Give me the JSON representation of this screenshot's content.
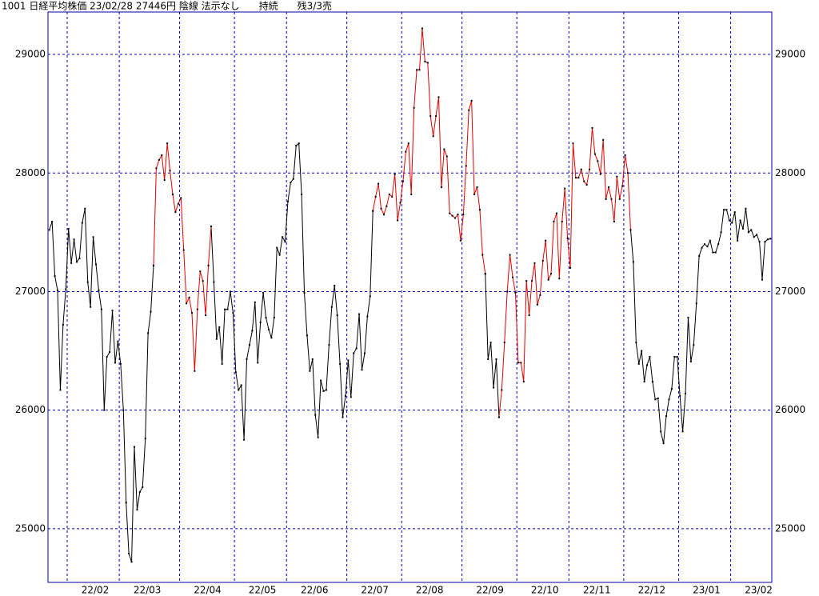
{
  "chart_data": {
    "type": "line",
    "title": "1001 日経平均株価 23/02/28 27446円 陰線 法示なし　　持続　　残3/3売",
    "ylim": [
      24547,
      29358
    ],
    "yticks": [
      25000,
      26000,
      27000,
      28000,
      29000
    ],
    "grid": true,
    "categories": [
      null,
      null,
      null,
      null,
      null,
      null,
      null,
      "22/02",
      null,
      null,
      null,
      null,
      null,
      null,
      null,
      null,
      null,
      null,
      null,
      null,
      null,
      null,
      null,
      null,
      null,
      null,
      "22/03",
      null,
      null,
      null,
      null,
      null,
      null,
      null,
      null,
      null,
      null,
      null,
      null,
      null,
      null,
      null,
      null,
      null,
      null,
      null,
      null,
      null,
      "22/04",
      null,
      null,
      null,
      null,
      null,
      null,
      null,
      null,
      null,
      null,
      null,
      null,
      null,
      null,
      null,
      null,
      null,
      null,
      null,
      "22/05",
      null,
      null,
      null,
      null,
      null,
      null,
      null,
      null,
      null,
      null,
      null,
      null,
      null,
      null,
      null,
      null,
      null,
      null,
      "22/06",
      null,
      null,
      null,
      null,
      null,
      null,
      null,
      null,
      null,
      null,
      null,
      null,
      null,
      null,
      null,
      null,
      null,
      null,
      null,
      null,
      null,
      "22/07",
      null,
      null,
      null,
      null,
      null,
      null,
      null,
      null,
      null,
      null,
      null,
      null,
      null,
      null,
      null,
      null,
      null,
      null,
      null,
      "22/08",
      null,
      null,
      null,
      null,
      null,
      null,
      null,
      null,
      null,
      null,
      null,
      null,
      null,
      null,
      null,
      null,
      null,
      null,
      null,
      null,
      null,
      "22/09",
      null,
      null,
      null,
      null,
      null,
      null,
      null,
      null,
      null,
      null,
      null,
      null,
      null,
      null,
      null,
      null,
      null,
      null,
      null,
      "22/10",
      null,
      null,
      null,
      null,
      null,
      null,
      null,
      null,
      null,
      null,
      null,
      null,
      null,
      null,
      null,
      null,
      null,
      null,
      "22/11",
      null,
      null,
      null,
      null,
      null,
      null,
      null,
      null,
      null,
      null,
      null,
      null,
      null,
      null,
      null,
      null,
      null,
      null,
      null,
      "22/12",
      null,
      null,
      null,
      null,
      null,
      null,
      null,
      null,
      null,
      null,
      null,
      null,
      null,
      null,
      null,
      null,
      null,
      null,
      null,
      "23/01",
      null,
      null,
      null,
      null,
      null,
      null,
      null,
      null,
      null,
      null,
      null,
      null,
      null,
      null,
      null,
      null,
      null,
      null,
      "23/02",
      null,
      null,
      null,
      null,
      null,
      null,
      null,
      null,
      null,
      null,
      null,
      null,
      null,
      null
    ],
    "series": [
      {
        "color": "#000000",
        "values": [
          27520,
          27590,
          27130,
          27010,
          26170,
          26720,
          27020,
          27530,
          27240,
          27440,
          27250,
          27280,
          27580,
          27700,
          27080,
          26870,
          27460,
          27230,
          27010,
          26850,
          26000,
          26450,
          26490,
          26840,
          26400,
          26580,
          26390,
          26000,
          25220,
          24790,
          24720,
          25690,
          25160,
          25310,
          25350,
          25760,
          26650,
          26830,
          27220,
          null,
          null,
          null,
          null,
          null,
          null,
          null,
          null,
          null,
          null,
          null,
          null,
          null,
          null,
          null,
          null,
          null,
          null,
          null,
          null,
          27550,
          27080,
          26600,
          26700,
          26390,
          26850,
          26850,
          27000,
          26820,
          26320,
          26170,
          26210,
          25750,
          26430,
          26550,
          26670,
          26910,
          26400,
          26740,
          26990,
          26780,
          26680,
          26610,
          26780,
          27370,
          27310,
          27460,
          27420,
          27760,
          27920,
          27950,
          28230,
          28250,
          27820,
          26990,
          26630,
          26330,
          26430,
          25960,
          25770,
          26250,
          26160,
          26170,
          26550,
          26870,
          27050,
          26800,
          26390,
          25940,
          26120,
          26420,
          26110,
          26480,
          26520,
          26810,
          26340,
          26480,
          26790,
          26960,
          27680,
          null,
          null,
          null,
          null,
          null,
          null,
          null,
          null,
          null,
          null,
          null,
          null,
          null,
          null,
          null,
          null,
          null,
          null,
          null,
          null,
          null,
          null,
          null,
          null,
          null,
          null,
          null,
          null,
          null,
          null,
          null,
          null,
          null,
          null,
          null,
          null,
          null,
          null,
          null,
          null,
          27150,
          26430,
          26570,
          26190,
          26430,
          25940,
          null,
          null,
          null,
          null,
          null,
          null,
          null,
          null,
          null,
          null,
          null,
          null,
          null,
          null,
          null,
          null,
          null,
          null,
          null,
          null,
          null,
          null,
          null,
          null,
          null,
          null,
          null,
          null,
          null,
          null,
          null,
          null,
          null,
          null,
          null,
          null,
          null,
          null,
          null,
          null,
          null,
          null,
          null,
          null,
          null,
          null,
          null,
          27520,
          27250,
          26570,
          26390,
          26500,
          26240,
          26380,
          26450,
          26240,
          26090,
          26100,
          25820,
          25720,
          25950,
          26090,
          26180,
          26450,
          26450,
          26120,
          25820,
          26140,
          26780,
          26410,
          26550,
          26900,
          27300,
          27370,
          27400,
          27380,
          27430,
          27330,
          27330,
          27400,
          27500,
          27690,
          27690,
          27600,
          27580,
          27670,
          27430,
          27600,
          27530,
          27700,
          27500,
          27520,
          27460,
          27480,
          27420,
          27100,
          27420,
          27440,
          27446
        ]
      },
      {
        "color": "#e00000",
        "values": [
          null,
          null,
          null,
          null,
          null,
          null,
          null,
          null,
          null,
          null,
          null,
          null,
          null,
          null,
          null,
          null,
          null,
          null,
          null,
          null,
          null,
          null,
          null,
          null,
          null,
          null,
          null,
          null,
          null,
          null,
          null,
          null,
          null,
          null,
          null,
          null,
          null,
          null,
          27220,
          28040,
          28110,
          28150,
          27940,
          28250,
          28020,
          27820,
          27670,
          27740,
          27790,
          27350,
          26900,
          26950,
          26820,
          26330,
          26850,
          27170,
          27090,
          26800,
          27220,
          27550,
          null,
          null,
          null,
          null,
          null,
          null,
          null,
          null,
          null,
          null,
          null,
          null,
          null,
          null,
          null,
          null,
          null,
          null,
          null,
          null,
          null,
          null,
          null,
          null,
          null,
          null,
          null,
          null,
          null,
          null,
          null,
          null,
          null,
          null,
          null,
          null,
          null,
          null,
          null,
          null,
          null,
          null,
          null,
          null,
          null,
          null,
          null,
          null,
          null,
          null,
          null,
          null,
          null,
          null,
          null,
          null,
          null,
          null,
          27680,
          27800,
          27910,
          27700,
          27650,
          27720,
          27820,
          27800,
          27990,
          27600,
          27750,
          27930,
          28180,
          28250,
          27820,
          28550,
          28870,
          28870,
          29220,
          28940,
          28930,
          28480,
          28310,
          28480,
          28640,
          27880,
          28200,
          28140,
          27660,
          27640,
          27620,
          27650,
          27430,
          27650,
          28060,
          28530,
          28610,
          27820,
          27880,
          27690,
          27310,
          27150,
          null,
          null,
          null,
          null,
          25940,
          26170,
          26570,
          27000,
          27310,
          27120,
          26990,
          26400,
          26400,
          26240,
          27090,
          26800,
          27090,
          27240,
          26890,
          26970,
          27260,
          27430,
          27100,
          27150,
          27590,
          27660,
          27110,
          27590,
          27870,
          27450,
          27200,
          28250,
          27960,
          27960,
          28030,
          27930,
          27900,
          28030,
          28380,
          28160,
          28100,
          27990,
          28280,
          27780,
          27880,
          27780,
          27590,
          27970,
          27780,
          27890,
          28150,
          28000,
          27520,
          null,
          null,
          null,
          null,
          null,
          null,
          null,
          null,
          null,
          null,
          null,
          null,
          null,
          null,
          null,
          null,
          null,
          null,
          null,
          null,
          null,
          null,
          null,
          null,
          null,
          null,
          null,
          null,
          null,
          null,
          null,
          null,
          null,
          null,
          null,
          null,
          null,
          null,
          null,
          null,
          null,
          null,
          null,
          null,
          null,
          null,
          null,
          null,
          null,
          null,
          null
        ]
      }
    ]
  }
}
